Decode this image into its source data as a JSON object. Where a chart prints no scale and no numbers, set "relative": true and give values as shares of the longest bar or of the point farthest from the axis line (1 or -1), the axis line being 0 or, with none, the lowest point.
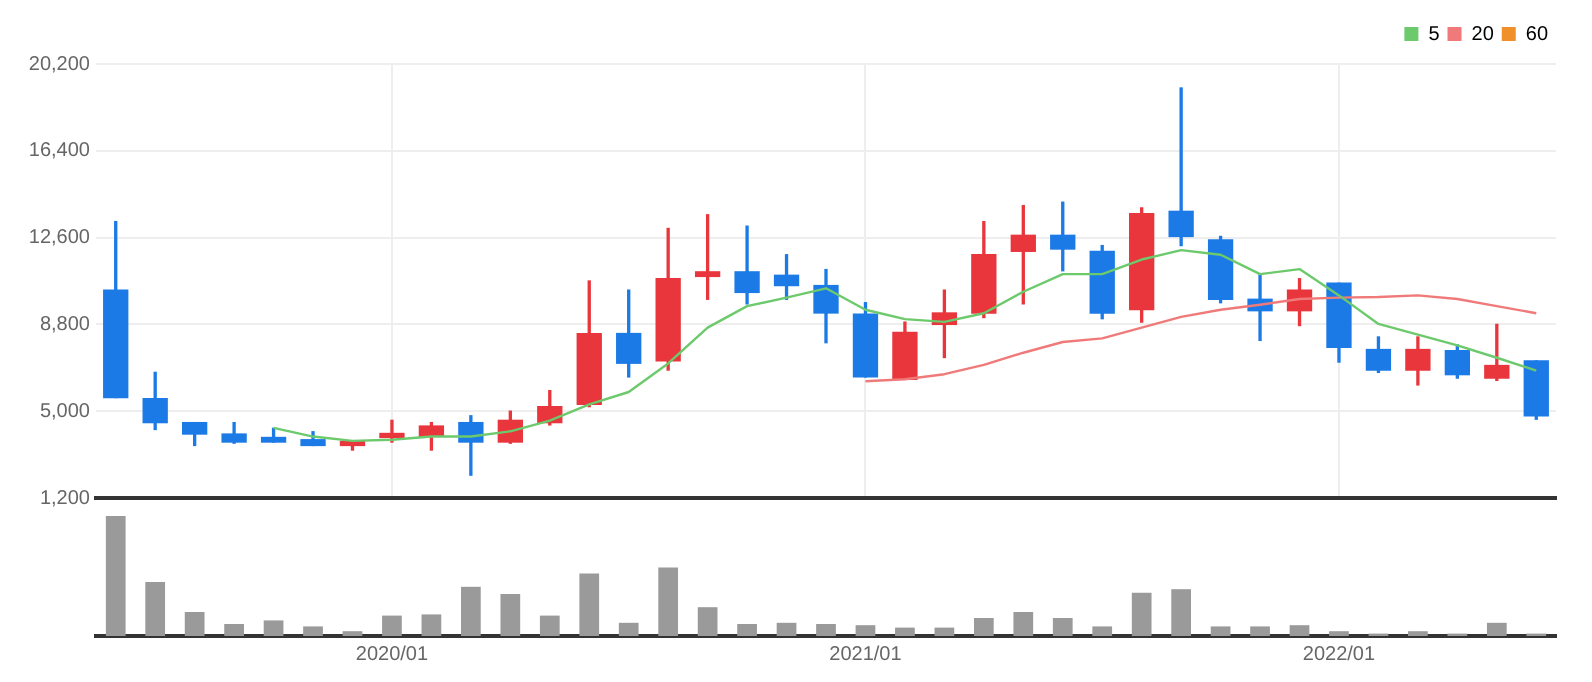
{
  "chart_data": [
    {
      "type": "candlestick",
      "categories": [
        null,
        null,
        null,
        null,
        null,
        null,
        null,
        "2020/01",
        null,
        null,
        null,
        null,
        null,
        null,
        null,
        null,
        null,
        null,
        null,
        "2021/01",
        null,
        null,
        null,
        null,
        null,
        null,
        null,
        null,
        null,
        null,
        null,
        "2022/01",
        null,
        null,
        null,
        null,
        null
      ],
      "ohlc": [
        [
          10300,
          13300,
          5600,
          5600
        ],
        [
          5550,
          6700,
          4200,
          4500
        ],
        [
          4500,
          4500,
          3500,
          4000
        ],
        [
          4000,
          4500,
          3600,
          3650
        ],
        [
          3850,
          4250,
          3650,
          3650
        ],
        [
          3750,
          4100,
          3500,
          3500
        ],
        [
          3500,
          3700,
          3300,
          3650
        ],
        [
          3850,
          4600,
          3650,
          3950
        ],
        [
          3900,
          4500,
          3300,
          4350
        ],
        [
          4500,
          4800,
          2200,
          3650
        ],
        [
          3650,
          5000,
          3600,
          4600
        ],
        [
          4500,
          5900,
          4400,
          5200
        ],
        [
          5300,
          10700,
          5200,
          8400
        ],
        [
          8400,
          10300,
          6500,
          7100
        ],
        [
          7200,
          13000,
          6800,
          10800
        ],
        [
          10900,
          13600,
          9900,
          11100
        ],
        [
          11100,
          13100,
          9700,
          10200
        ],
        [
          10950,
          11850,
          9900,
          10500
        ],
        [
          10500,
          11200,
          8000,
          9300
        ],
        [
          9250,
          9750,
          6500,
          6500
        ],
        [
          6400,
          8900,
          6400,
          8450
        ],
        [
          8800,
          10300,
          7350,
          9300
        ],
        [
          9300,
          13300,
          9100,
          11850
        ],
        [
          12000,
          14000,
          9700,
          12700
        ],
        [
          12700,
          14150,
          11150,
          12100
        ],
        [
          12000,
          12250,
          9050,
          9300
        ],
        [
          9450,
          13900,
          8900,
          13650
        ],
        [
          13750,
          19150,
          12250,
          12650
        ],
        [
          12500,
          12650,
          9750,
          9900
        ],
        [
          9900,
          11000,
          8100,
          9400
        ],
        [
          9400,
          10800,
          8750,
          10300
        ],
        [
          10600,
          10600,
          7150,
          7800
        ],
        [
          7700,
          8250,
          6700,
          6800
        ],
        [
          6800,
          8250,
          6150,
          7700
        ],
        [
          7650,
          7900,
          6450,
          6600
        ],
        [
          6450,
          8800,
          6350,
          7000
        ],
        [
          7200,
          7200,
          4650,
          4800
        ]
      ],
      "colors": [
        "#1b7ae6",
        "#1b7ae6",
        "#1b7ae6",
        "#1b7ae6",
        "#1b7ae6",
        "#1b7ae6",
        "#e8363c",
        "#e8363c",
        "#e8363c",
        "#1b7ae6",
        "#e8363c",
        "#e8363c",
        "#e8363c",
        "#1b7ae6",
        "#e8363c",
        "#e8363c",
        "#1b7ae6",
        "#1b7ae6",
        "#1b7ae6",
        "#1b7ae6",
        "#e8363c",
        "#e8363c",
        "#e8363c",
        "#e8363c",
        "#1b7ae6",
        "#1b7ae6",
        "#e8363c",
        "#1b7ae6",
        "#1b7ae6",
        "#1b7ae6",
        "#e8363c",
        "#1b7ae6",
        "#1b7ae6",
        "#e8363c",
        "#1b7ae6",
        "#e8363c",
        "#1b7ae6"
      ],
      "series": [
        {
          "name": "5",
          "type": "line",
          "color": "#6cc96c",
          "values": [
            null,
            null,
            null,
            null,
            4270,
            3890,
            3700,
            3750,
            3890,
            3890,
            4120,
            4590,
            5300,
            5840,
            7090,
            8660,
            9600,
            9970,
            10380,
            9440,
            9030,
            8910,
            9290,
            10230,
            11000,
            11000,
            11640,
            12050,
            11850,
            11000,
            11220,
            10070,
            8820,
            8350,
            7880,
            7340,
            6780
          ]
        },
        {
          "name": "20",
          "type": "line",
          "color": "#f07a7a",
          "values": [
            null,
            null,
            null,
            null,
            null,
            null,
            null,
            null,
            null,
            null,
            null,
            null,
            null,
            null,
            null,
            null,
            null,
            null,
            null,
            6310,
            6400,
            6620,
            7030,
            7560,
            8030,
            8190,
            8660,
            9130,
            9440,
            9660,
            9910,
            9970,
            10000,
            10070,
            9910,
            9600,
            9290
          ]
        },
        {
          "name": "60",
          "type": "line",
          "color": "#f0902a",
          "values": [
            null,
            null,
            null,
            null,
            null,
            null,
            null,
            null,
            null,
            null,
            null,
            null,
            null,
            null,
            null,
            null,
            null,
            null,
            null,
            null,
            null,
            null,
            null,
            null,
            null,
            null,
            null,
            null,
            null,
            null,
            null,
            null,
            null,
            null,
            null,
            null,
            null
          ]
        }
      ],
      "ylim": [
        1200,
        20200
      ],
      "yticks": [
        {
          "value": 1200,
          "label": "1,200"
        },
        {
          "value": 5000,
          "label": "5,000"
        },
        {
          "value": 8800,
          "label": "8,800"
        },
        {
          "value": 12600,
          "label": "12,600"
        },
        {
          "value": 16400,
          "label": "16,400"
        },
        {
          "value": 20200,
          "label": "20,200"
        }
      ],
      "grid": true,
      "legend": "top right",
      "marker": "none",
      "tick_labels": "y"
    },
    {
      "type": "bar",
      "relative": true,
      "tick_labels": "x",
      "color": "#9a9a9a",
      "categories": [
        null,
        null,
        null,
        null,
        null,
        null,
        null,
        "2020/01",
        null,
        null,
        null,
        null,
        null,
        null,
        null,
        null,
        null,
        null,
        null,
        "2021/01",
        null,
        null,
        null,
        null,
        null,
        null,
        null,
        null,
        null,
        null,
        null,
        "2022/01",
        null,
        null,
        null,
        null,
        null
      ],
      "values": [
        1,
        0.45,
        0.2,
        0.1,
        0.13,
        0.08,
        0.04,
        0.17,
        0.18,
        0.41,
        0.35,
        0.17,
        0.52,
        0.11,
        0.57,
        0.24,
        0.1,
        0.11,
        0.1,
        0.09,
        0.07,
        0.07,
        0.15,
        0.2,
        0.15,
        0.08,
        0.36,
        0.39,
        0.08,
        0.08,
        0.09,
        0.04,
        0.02,
        0.04,
        0.02,
        0.11,
        0.02
      ]
    }
  ]
}
